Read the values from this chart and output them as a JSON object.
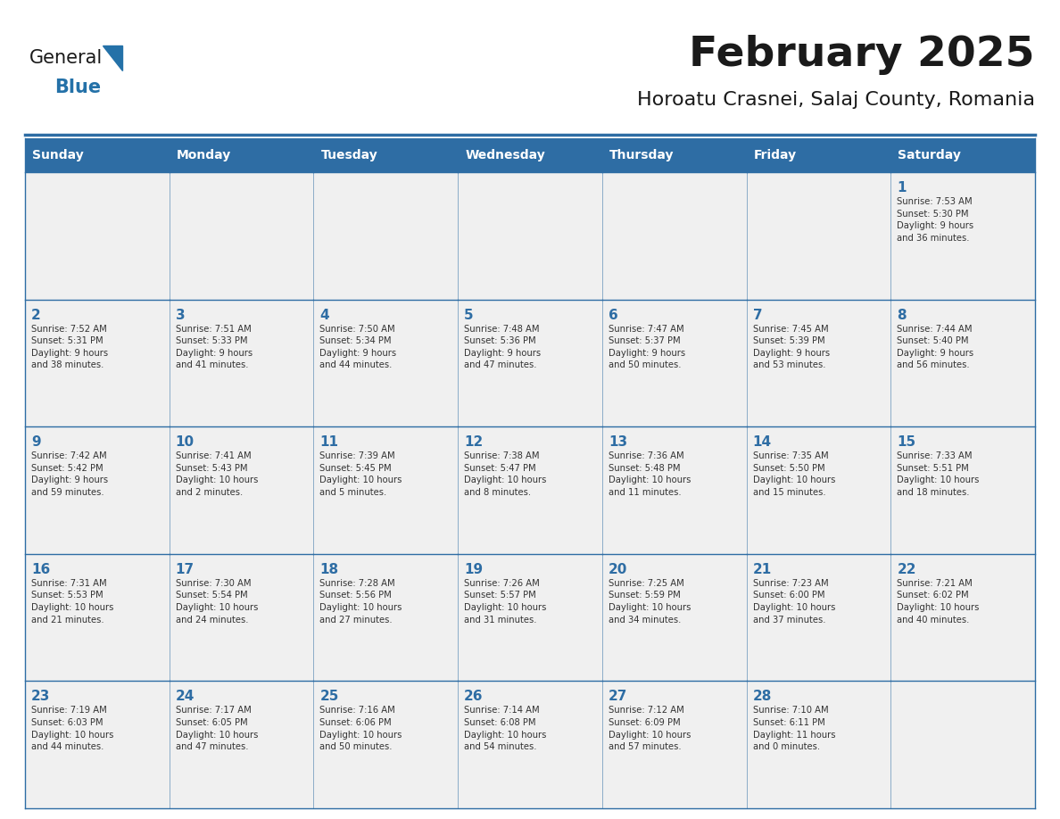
{
  "title": "February 2025",
  "subtitle": "Horoatu Crasnei, Salaj County, Romania",
  "header_bg_color": "#2E6DA4",
  "header_text_color": "#FFFFFF",
  "cell_bg_color": "#F0F0F0",
  "border_color": "#2E6DA4",
  "title_color": "#1a1a1a",
  "subtitle_color": "#1a1a1a",
  "day_number_color": "#2E6DA4",
  "cell_text_color": "#333333",
  "days_of_week": [
    "Sunday",
    "Monday",
    "Tuesday",
    "Wednesday",
    "Thursday",
    "Friday",
    "Saturday"
  ],
  "weeks": [
    [
      {
        "day": "",
        "info": ""
      },
      {
        "day": "",
        "info": ""
      },
      {
        "day": "",
        "info": ""
      },
      {
        "day": "",
        "info": ""
      },
      {
        "day": "",
        "info": ""
      },
      {
        "day": "",
        "info": ""
      },
      {
        "day": "1",
        "info": "Sunrise: 7:53 AM\nSunset: 5:30 PM\nDaylight: 9 hours\nand 36 minutes."
      }
    ],
    [
      {
        "day": "2",
        "info": "Sunrise: 7:52 AM\nSunset: 5:31 PM\nDaylight: 9 hours\nand 38 minutes."
      },
      {
        "day": "3",
        "info": "Sunrise: 7:51 AM\nSunset: 5:33 PM\nDaylight: 9 hours\nand 41 minutes."
      },
      {
        "day": "4",
        "info": "Sunrise: 7:50 AM\nSunset: 5:34 PM\nDaylight: 9 hours\nand 44 minutes."
      },
      {
        "day": "5",
        "info": "Sunrise: 7:48 AM\nSunset: 5:36 PM\nDaylight: 9 hours\nand 47 minutes."
      },
      {
        "day": "6",
        "info": "Sunrise: 7:47 AM\nSunset: 5:37 PM\nDaylight: 9 hours\nand 50 minutes."
      },
      {
        "day": "7",
        "info": "Sunrise: 7:45 AM\nSunset: 5:39 PM\nDaylight: 9 hours\nand 53 minutes."
      },
      {
        "day": "8",
        "info": "Sunrise: 7:44 AM\nSunset: 5:40 PM\nDaylight: 9 hours\nand 56 minutes."
      }
    ],
    [
      {
        "day": "9",
        "info": "Sunrise: 7:42 AM\nSunset: 5:42 PM\nDaylight: 9 hours\nand 59 minutes."
      },
      {
        "day": "10",
        "info": "Sunrise: 7:41 AM\nSunset: 5:43 PM\nDaylight: 10 hours\nand 2 minutes."
      },
      {
        "day": "11",
        "info": "Sunrise: 7:39 AM\nSunset: 5:45 PM\nDaylight: 10 hours\nand 5 minutes."
      },
      {
        "day": "12",
        "info": "Sunrise: 7:38 AM\nSunset: 5:47 PM\nDaylight: 10 hours\nand 8 minutes."
      },
      {
        "day": "13",
        "info": "Sunrise: 7:36 AM\nSunset: 5:48 PM\nDaylight: 10 hours\nand 11 minutes."
      },
      {
        "day": "14",
        "info": "Sunrise: 7:35 AM\nSunset: 5:50 PM\nDaylight: 10 hours\nand 15 minutes."
      },
      {
        "day": "15",
        "info": "Sunrise: 7:33 AM\nSunset: 5:51 PM\nDaylight: 10 hours\nand 18 minutes."
      }
    ],
    [
      {
        "day": "16",
        "info": "Sunrise: 7:31 AM\nSunset: 5:53 PM\nDaylight: 10 hours\nand 21 minutes."
      },
      {
        "day": "17",
        "info": "Sunrise: 7:30 AM\nSunset: 5:54 PM\nDaylight: 10 hours\nand 24 minutes."
      },
      {
        "day": "18",
        "info": "Sunrise: 7:28 AM\nSunset: 5:56 PM\nDaylight: 10 hours\nand 27 minutes."
      },
      {
        "day": "19",
        "info": "Sunrise: 7:26 AM\nSunset: 5:57 PM\nDaylight: 10 hours\nand 31 minutes."
      },
      {
        "day": "20",
        "info": "Sunrise: 7:25 AM\nSunset: 5:59 PM\nDaylight: 10 hours\nand 34 minutes."
      },
      {
        "day": "21",
        "info": "Sunrise: 7:23 AM\nSunset: 6:00 PM\nDaylight: 10 hours\nand 37 minutes."
      },
      {
        "day": "22",
        "info": "Sunrise: 7:21 AM\nSunset: 6:02 PM\nDaylight: 10 hours\nand 40 minutes."
      }
    ],
    [
      {
        "day": "23",
        "info": "Sunrise: 7:19 AM\nSunset: 6:03 PM\nDaylight: 10 hours\nand 44 minutes."
      },
      {
        "day": "24",
        "info": "Sunrise: 7:17 AM\nSunset: 6:05 PM\nDaylight: 10 hours\nand 47 minutes."
      },
      {
        "day": "25",
        "info": "Sunrise: 7:16 AM\nSunset: 6:06 PM\nDaylight: 10 hours\nand 50 minutes."
      },
      {
        "day": "26",
        "info": "Sunrise: 7:14 AM\nSunset: 6:08 PM\nDaylight: 10 hours\nand 54 minutes."
      },
      {
        "day": "27",
        "info": "Sunrise: 7:12 AM\nSunset: 6:09 PM\nDaylight: 10 hours\nand 57 minutes."
      },
      {
        "day": "28",
        "info": "Sunrise: 7:10 AM\nSunset: 6:11 PM\nDaylight: 11 hours\nand 0 minutes."
      },
      {
        "day": "",
        "info": ""
      }
    ]
  ],
  "logo_text_general": "General",
  "logo_text_blue": "Blue",
  "logo_color_general": "#1a1a1a",
  "logo_color_blue": "#2471A8",
  "logo_triangle_color": "#2471A8"
}
